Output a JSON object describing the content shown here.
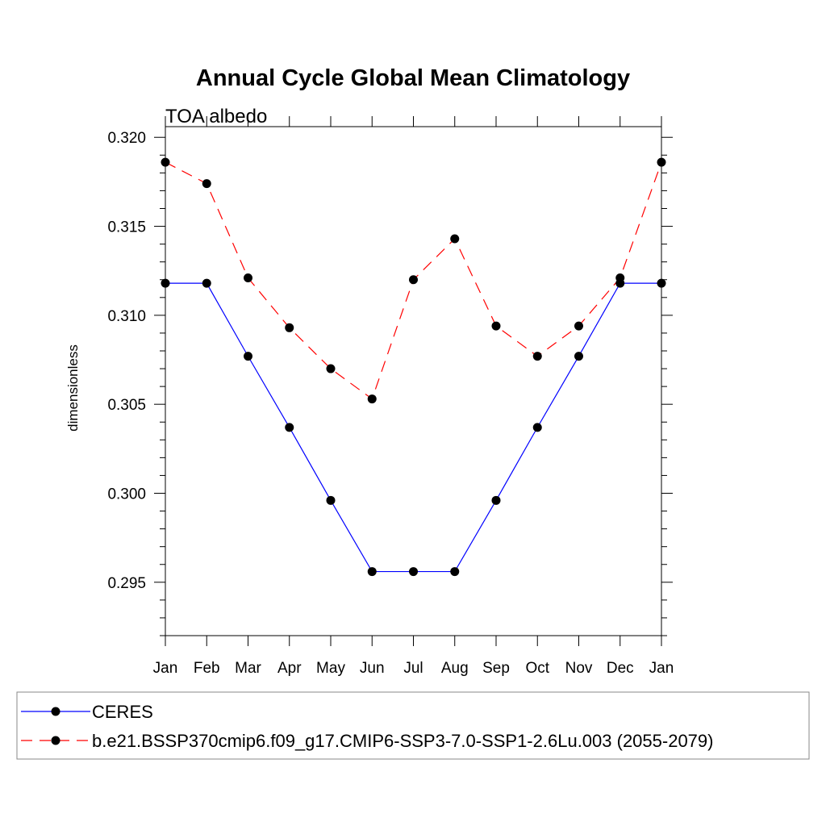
{
  "chart_data": {
    "type": "line",
    "title": "Annual Cycle Global Mean Climatology",
    "subtitle": "TOA albedo",
    "xlabel": "",
    "ylabel": "dimensionless",
    "categories": [
      "Jan",
      "Feb",
      "Mar",
      "Apr",
      "May",
      "Jun",
      "Jul",
      "Aug",
      "Sep",
      "Oct",
      "Nov",
      "Dec",
      "Jan"
    ],
    "ylim": [
      0.292,
      0.3206
    ],
    "yticks": [
      "0.295",
      "0.300",
      "0.305",
      "0.310",
      "0.315",
      "0.320"
    ],
    "grid": false,
    "legend_position": "bottom",
    "series": [
      {
        "name": "CERES",
        "color": "#0000ff",
        "dash": "solid",
        "values": [
          0.3118,
          0.3118,
          0.3077,
          0.3037,
          0.2996,
          0.2956,
          0.2956,
          0.2956,
          0.2996,
          0.3037,
          0.3077,
          0.3118,
          0.3118
        ]
      },
      {
        "name": "b.e21.BSSP370cmip6.f09_g17.CMIP6-SSP3-7.0-SSP1-2.6Lu.003 (2055-2079)",
        "color": "#ff0000",
        "dash": "dashed",
        "values": [
          0.3186,
          0.3174,
          0.3121,
          0.3093,
          0.307,
          0.3053,
          0.312,
          0.3143,
          0.3094,
          0.3077,
          0.3094,
          0.3121,
          0.3186
        ]
      }
    ]
  }
}
